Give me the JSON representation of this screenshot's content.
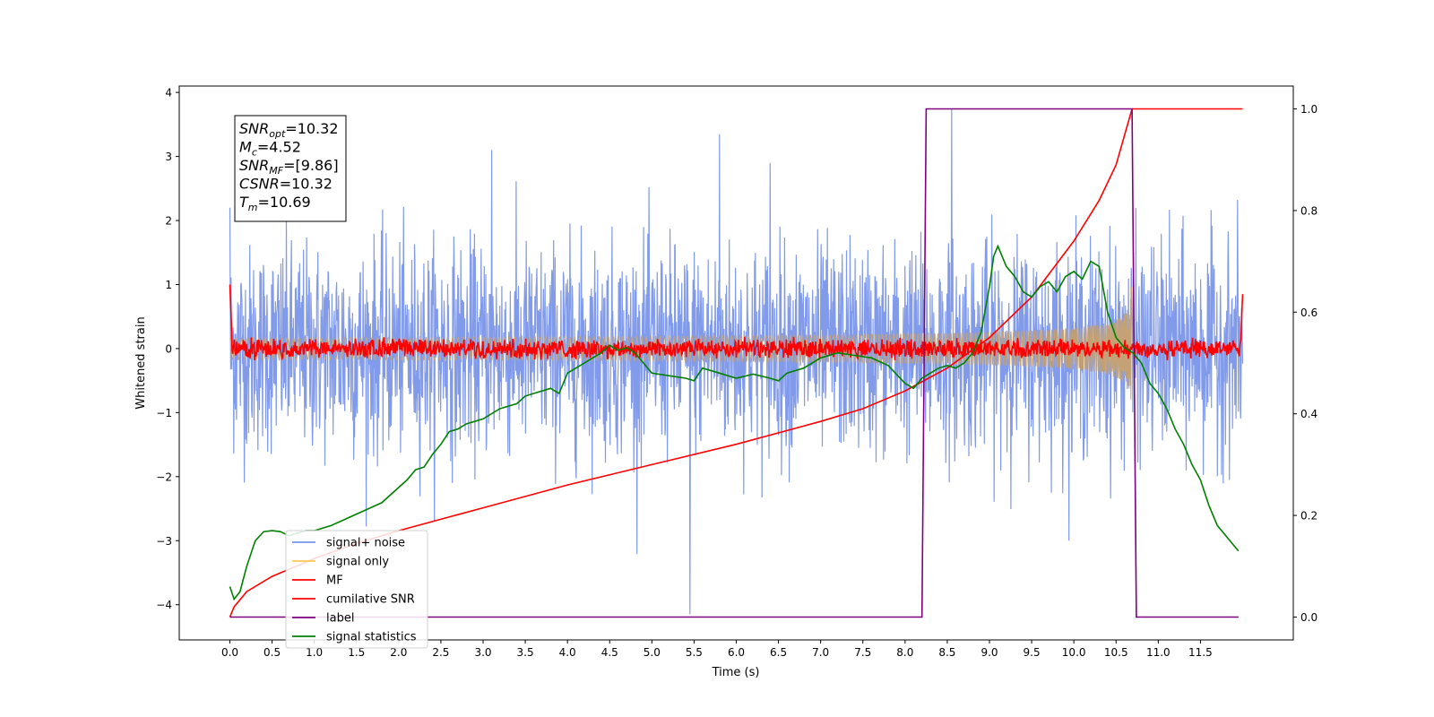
{
  "chart_data": {
    "type": "line",
    "xlabel": "Time (s)",
    "ylabel": "Whitened strain",
    "xlim": [
      -0.6,
      12.6
    ],
    "ylim": [
      -4.55,
      4.1
    ],
    "y2lim": [
      -0.045,
      1.045
    ],
    "xticks": [
      0.0,
      0.5,
      1.0,
      1.5,
      2.0,
      2.5,
      3.0,
      3.5,
      4.0,
      4.5,
      5.0,
      5.5,
      6.0,
      6.5,
      7.0,
      7.5,
      8.0,
      8.5,
      9.0,
      9.5,
      10.0,
      10.5,
      11.0,
      11.5
    ],
    "xtick_labels": [
      "0.0",
      "0.5",
      "1.0",
      "1.5",
      "2.0",
      "2.5",
      "3.0",
      "3.5",
      "4.0",
      "4.5",
      "5.0",
      "5.5",
      "6.0",
      "6.5",
      "7.0",
      "7.5",
      "8.0",
      "8.5",
      "9.0",
      "9.5",
      "10.0",
      "10.5",
      "11.0",
      "11.5"
    ],
    "yticks": [
      -4,
      -3,
      -2,
      -1,
      0,
      1,
      2,
      3,
      4
    ],
    "ytick_labels": [
      "−4",
      "−3",
      "−2",
      "−1",
      "0",
      "1",
      "2",
      "3",
      "4"
    ],
    "y2ticks": [
      0.0,
      0.2,
      0.4,
      0.6,
      0.8,
      1.0
    ],
    "y2tick_labels": [
      "0.0",
      "0.2",
      "0.4",
      "0.6",
      "0.8",
      "1.0"
    ],
    "grid": false,
    "legend_position": "lower-left",
    "annotation": {
      "lines": [
        {
          "sym": "SNR",
          "sub": "opt",
          "val": "=10.32"
        },
        {
          "sym": "M",
          "sub": "c",
          "val": "=4.52"
        },
        {
          "sym": "SNR",
          "sub": "MF",
          "val": "=[9.86]"
        },
        {
          "sym": "CSNR",
          "sub": "",
          "val": "=10.32"
        },
        {
          "sym": "T",
          "sub": "m",
          "val": "=10.69"
        }
      ]
    },
    "series": [
      {
        "name": "signal+ noise",
        "color": "#7a95e8",
        "axis": "left",
        "kind": "noise",
        "x_range": [
          0.0,
          12.0
        ],
        "envelope_typical": 1.9,
        "extremes": [
          [
            0.0,
            2.2
          ],
          [
            5.45,
            -4.15
          ],
          [
            5.8,
            3.35
          ],
          [
            3.1,
            3.1
          ],
          [
            8.55,
            3.75
          ],
          [
            6.4,
            2.9
          ]
        ]
      },
      {
        "name": "signal only",
        "color": "#ffc94d",
        "axis": "left",
        "kind": "chirp",
        "x_range": [
          0.0,
          10.69
        ],
        "end_amplitude": 0.9
      },
      {
        "name": "MF",
        "color": "#ff0000",
        "axis": "left",
        "kind": "mf",
        "x_range": [
          0.0,
          12.0
        ],
        "band": [
          -0.12,
          0.12
        ],
        "start_value": 1.0,
        "end_value": 0.85
      },
      {
        "name": "cumilative SNR",
        "color": "#ff0000",
        "axis": "right",
        "kind": "line",
        "x": [
          0.0,
          0.05,
          0.2,
          0.5,
          1.0,
          1.5,
          2.0,
          3.0,
          4.0,
          5.0,
          6.0,
          7.0,
          7.5,
          8.0,
          8.5,
          9.0,
          9.5,
          10.0,
          10.3,
          10.5,
          10.69,
          11.0,
          12.0
        ],
        "y": [
          0.0,
          0.02,
          0.05,
          0.08,
          0.115,
          0.145,
          0.17,
          0.215,
          0.26,
          0.3,
          0.34,
          0.385,
          0.41,
          0.445,
          0.49,
          0.55,
          0.63,
          0.74,
          0.82,
          0.89,
          1.0,
          1.0,
          1.0
        ]
      },
      {
        "name": "label",
        "color": "#800080",
        "axis": "right",
        "kind": "line",
        "x": [
          0.0,
          8.2,
          8.25,
          10.69,
          10.74,
          11.95
        ],
        "y": [
          0.0,
          0.0,
          1.0,
          1.0,
          0.0,
          0.0
        ]
      },
      {
        "name": "signal statistics",
        "color": "#008000",
        "axis": "right",
        "kind": "line",
        "x": [
          0.0,
          0.05,
          0.12,
          0.2,
          0.3,
          0.4,
          0.5,
          0.6,
          0.7,
          0.8,
          0.9,
          1.0,
          1.2,
          1.4,
          1.6,
          1.8,
          2.0,
          2.1,
          2.2,
          2.3,
          2.4,
          2.5,
          2.6,
          2.7,
          2.8,
          2.9,
          3.0,
          3.2,
          3.4,
          3.5,
          3.6,
          3.8,
          3.9,
          4.0,
          4.1,
          4.2,
          4.3,
          4.4,
          4.5,
          4.6,
          4.7,
          4.8,
          4.9,
          5.0,
          5.2,
          5.4,
          5.5,
          5.6,
          5.8,
          6.0,
          6.2,
          6.4,
          6.5,
          6.6,
          6.8,
          7.0,
          7.2,
          7.4,
          7.6,
          7.8,
          8.0,
          8.1,
          8.2,
          8.3,
          8.4,
          8.5,
          8.6,
          8.7,
          8.8,
          8.9,
          9.0,
          9.05,
          9.1,
          9.2,
          9.3,
          9.4,
          9.5,
          9.6,
          9.7,
          9.8,
          9.9,
          10.0,
          10.1,
          10.2,
          10.3,
          10.4,
          10.5,
          10.6,
          10.7,
          10.8,
          10.9,
          11.0,
          11.1,
          11.2,
          11.3,
          11.4,
          11.5,
          11.6,
          11.7,
          11.8,
          11.9,
          11.95
        ],
        "y": [
          0.06,
          0.035,
          0.05,
          0.1,
          0.15,
          0.168,
          0.17,
          0.168,
          0.16,
          0.165,
          0.17,
          0.17,
          0.18,
          0.195,
          0.21,
          0.225,
          0.255,
          0.27,
          0.29,
          0.295,
          0.32,
          0.34,
          0.365,
          0.37,
          0.38,
          0.385,
          0.39,
          0.41,
          0.42,
          0.435,
          0.44,
          0.45,
          0.44,
          0.48,
          0.49,
          0.5,
          0.51,
          0.52,
          0.535,
          0.525,
          0.53,
          0.52,
          0.5,
          0.48,
          0.475,
          0.47,
          0.465,
          0.49,
          0.48,
          0.47,
          0.478,
          0.47,
          0.465,
          0.48,
          0.49,
          0.51,
          0.52,
          0.515,
          0.51,
          0.495,
          0.46,
          0.45,
          0.47,
          0.48,
          0.49,
          0.495,
          0.49,
          0.5,
          0.52,
          0.56,
          0.65,
          0.71,
          0.73,
          0.69,
          0.67,
          0.64,
          0.63,
          0.65,
          0.66,
          0.64,
          0.67,
          0.68,
          0.665,
          0.7,
          0.69,
          0.6,
          0.55,
          0.53,
          0.52,
          0.5,
          0.46,
          0.44,
          0.41,
          0.37,
          0.34,
          0.3,
          0.27,
          0.22,
          0.18,
          0.16,
          0.14,
          0.13
        ]
      }
    ]
  }
}
